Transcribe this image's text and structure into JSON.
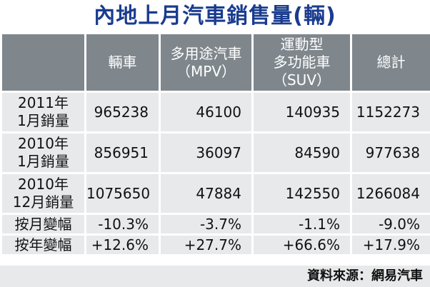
{
  "title": "內地上月汽車銷售量(輛)",
  "table": {
    "header": [
      [
        "輛車"
      ],
      [
        "多用途汽車",
        "（MPV）"
      ],
      [
        "運動型",
        "多功能車",
        "（SUV）"
      ],
      [
        "總計"
      ]
    ],
    "rows": [
      {
        "label": [
          "2011年",
          "1月銷量"
        ],
        "cells": [
          "965238",
          "46100",
          "140935",
          "1152273"
        ]
      },
      {
        "label": [
          "2010年",
          "1月銷量"
        ],
        "cells": [
          "856951",
          "36097",
          "84590",
          "977638"
        ]
      },
      {
        "label": [
          "2010年",
          "12月銷量"
        ],
        "cells": [
          "1075650",
          "47884",
          "142550",
          "1266084"
        ]
      },
      {
        "label": [
          "按月變幅"
        ],
        "cells": [
          "-10.3%",
          "-3.7%",
          "-1.1%",
          "-9.0%"
        ]
      },
      {
        "label": [
          "按年變幅"
        ],
        "cells": [
          "+12.6%",
          "+27.7%",
          "+66.6%",
          "+17.9%"
        ]
      }
    ]
  },
  "source": "資料來源：網易汽車"
}
